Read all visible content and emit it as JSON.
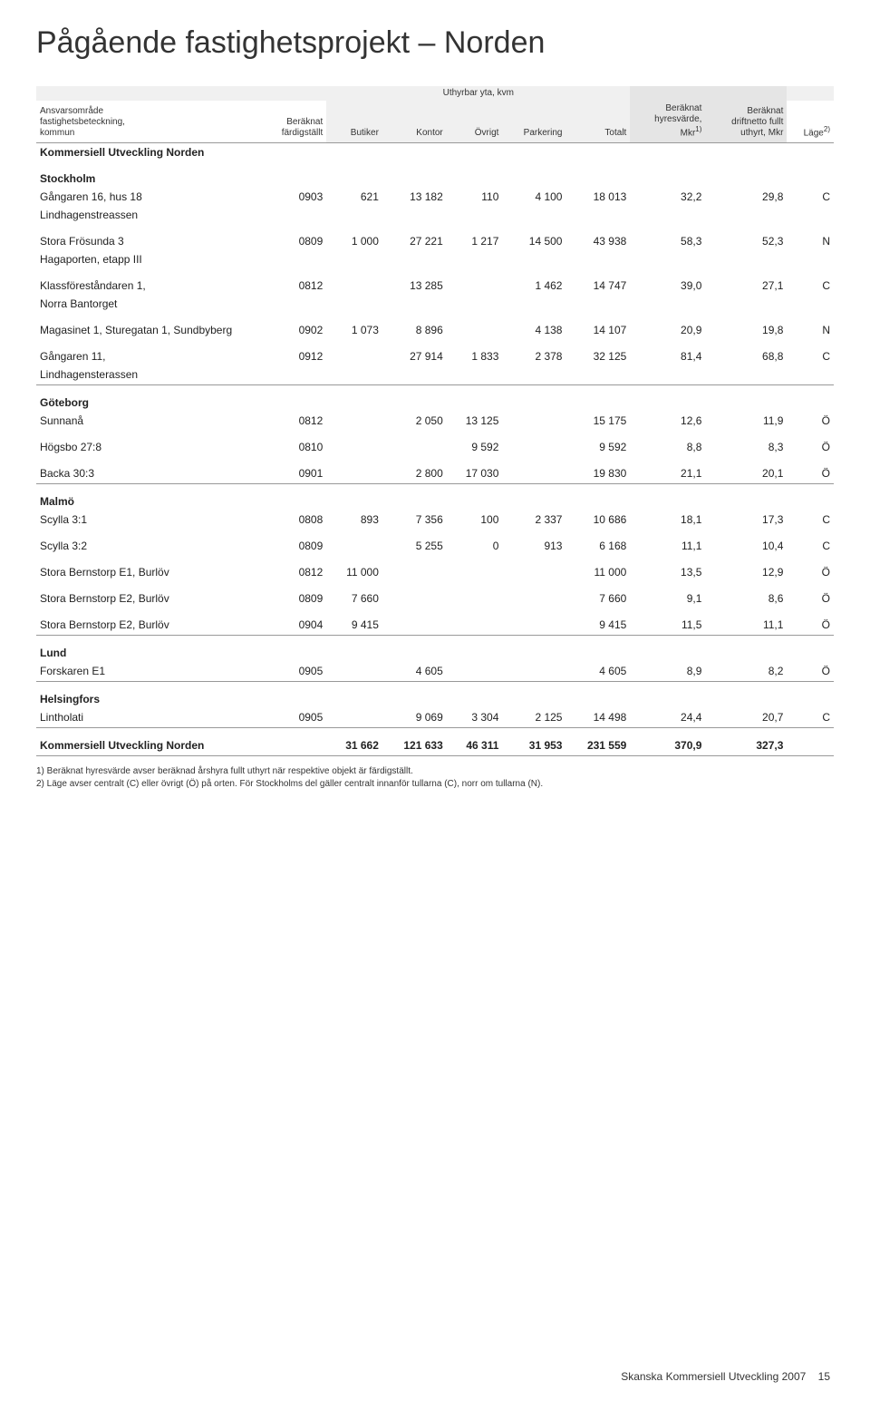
{
  "title": "Pågående fastighetsprojekt – Norden",
  "header": {
    "col0": "Ansvarsområde\nfastighetsbeteckning,\nkommun",
    "col1": "Beräknat\nfärdigställt",
    "col2": "Butiker",
    "col3": "Kontor",
    "col4": "Övrigt",
    "col5": "Parkering",
    "col6": "Totalt",
    "col7": "Beräknat\nhyresvärde,\nMkr",
    "col7_sup": "1)",
    "col8": "Beräknat\ndriftnetto fullt\nuthyrt, Mkr",
    "col9": "Läge",
    "col9_sup": "2)",
    "yta": "Uthyrbar yta, kvm"
  },
  "section_main": "Kommersiell Utveckling Norden",
  "groups": [
    {
      "label": "Stockholm",
      "rows": [
        {
          "name": "Gångaren 16, hus 18",
          "note": "Lindhagenstreassen",
          "cells": [
            "0903",
            "621",
            "13 182",
            "110",
            "4 100",
            "18 013",
            "32,2",
            "29,8",
            "C"
          ]
        },
        {
          "name": "Stora Frösunda 3",
          "note": "Hagaporten, etapp III",
          "cells": [
            "0809",
            "1 000",
            "27 221",
            "1 217",
            "14 500",
            "43 938",
            "58,3",
            "52,3",
            "N"
          ]
        },
        {
          "name": "Klassföreståndaren 1,",
          "note": "Norra Bantorget",
          "cells": [
            "0812",
            "",
            "13 285",
            "",
            "1 462",
            "14 747",
            "39,0",
            "27,1",
            "C"
          ]
        },
        {
          "name": "Magasinet 1, Sturegatan 1, Sundbyberg",
          "note": "",
          "cells": [
            "0902",
            "1 073",
            "8 896",
            "",
            "4 138",
            "14 107",
            "20,9",
            "19,8",
            "N"
          ]
        },
        {
          "name": "Gångaren 11,",
          "note": "Lindhagensterassen",
          "cells": [
            "0912",
            "",
            "27 914",
            "1 833",
            "2 378",
            "32 125",
            "81,4",
            "68,8",
            "C"
          ]
        }
      ]
    },
    {
      "label": "Göteborg",
      "rows": [
        {
          "name": "Sunnanå",
          "note": "",
          "cells": [
            "0812",
            "",
            "2 050",
            "13 125",
            "",
            "15 175",
            "12,6",
            "11,9",
            "Ö"
          ]
        },
        {
          "name": "Högsbo 27:8",
          "note": "",
          "cells": [
            "0810",
            "",
            "",
            "9 592",
            "",
            "9 592",
            "8,8",
            "8,3",
            "Ö"
          ]
        },
        {
          "name": "Backa 30:3",
          "note": "",
          "cells": [
            "0901",
            "",
            "2 800",
            "17 030",
            "",
            "19 830",
            "21,1",
            "20,1",
            "Ö"
          ]
        }
      ]
    },
    {
      "label": "Malmö",
      "rows": [
        {
          "name": "Scylla 3:1",
          "note": "",
          "cells": [
            "0808",
            "893",
            "7 356",
            "100",
            "2 337",
            "10 686",
            "18,1",
            "17,3",
            "C"
          ]
        },
        {
          "name": "Scylla 3:2",
          "note": "",
          "cells": [
            "0809",
            "",
            "5 255",
            "0",
            "913",
            "6 168",
            "11,1",
            "10,4",
            "C"
          ]
        },
        {
          "name": "Stora Bernstorp E1, Burlöv",
          "note": "",
          "cells": [
            "0812",
            "11 000",
            "",
            "",
            "",
            "11 000",
            "13,5",
            "12,9",
            "Ö"
          ]
        },
        {
          "name": "Stora Bernstorp E2, Burlöv",
          "note": "",
          "cells": [
            "0809",
            "7 660",
            "",
            "",
            "",
            "7 660",
            "9,1",
            "8,6",
            "Ö"
          ]
        },
        {
          "name": "Stora Bernstorp E2, Burlöv",
          "note": "",
          "cells": [
            "0904",
            "9 415",
            "",
            "",
            "",
            "9 415",
            "11,5",
            "11,1",
            "Ö"
          ]
        }
      ]
    },
    {
      "label": "Lund",
      "rows": [
        {
          "name": "Forskaren E1",
          "note": "",
          "cells": [
            "0905",
            "",
            "4 605",
            "",
            "",
            "4 605",
            "8,9",
            "8,2",
            "Ö"
          ]
        }
      ]
    },
    {
      "label": "Helsingfors",
      "rows": [
        {
          "name": "Lintholati",
          "note": "",
          "cells": [
            "0905",
            "",
            "9 069",
            "3 304",
            "2 125",
            "14 498",
            "24,4",
            "20,7",
            "C"
          ]
        }
      ]
    }
  ],
  "total": {
    "name": "Kommersiell Utveckling Norden",
    "cells": [
      "",
      "31 662",
      "121 633",
      "46 311",
      "31 953",
      "231 559",
      "370,9",
      "327,3",
      ""
    ]
  },
  "footnotes": [
    "1) Beräknat hyresvärde avser beräknad årshyra fullt uthyrt när respektive objekt är färdigställt.",
    "2) Läge avser centralt (C) eller övrigt (Ö) på orten. För Stockholms del gäller centralt innanför tullarna (C), norr om tullarna (N)."
  ],
  "footer": {
    "text": "Skanska Kommersiell Utveckling 2007",
    "page": "15"
  }
}
